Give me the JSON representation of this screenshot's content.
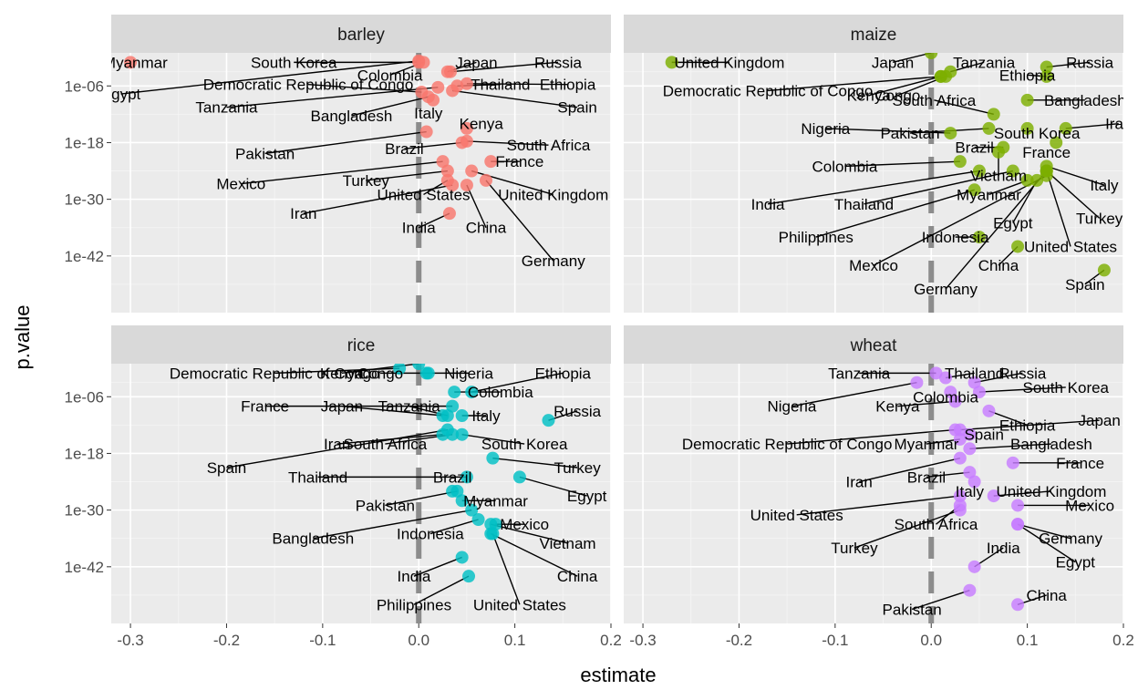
{
  "chart_data": {
    "type": "scatter",
    "xlabel": "estimate",
    "ylabel": "p.value",
    "y_scale": "log10 (reversed)",
    "xlim": [
      -0.32,
      0.2
    ],
    "x_ticks": [
      -0.3,
      -0.2,
      -0.1,
      0.0,
      0.1,
      0.2
    ],
    "x_tick_labels": [
      "-0.3",
      "-0.2",
      "-0.1",
      "0.0",
      "0.1",
      "0.2"
    ],
    "ylim": [
      10.0,
      1e-54
    ],
    "y_ticks": [
      1e-06,
      1e-18,
      1e-30,
      1e-42
    ],
    "y_tick_labels": [
      "1e-06",
      "1e-18",
      "1e-30",
      "1e-42"
    ],
    "reference_line_x": 0,
    "grid": true,
    "legend": "none",
    "colors": {
      "barley": "#F8766D",
      "maize": "#7CAE00",
      "rice": "#00BFC4",
      "wheat": "#C77CFF"
    },
    "panels": [
      {
        "crop": "barley",
        "points": [
          {
            "country": "Myanmar",
            "x": -0.3,
            "y": 0.1,
            "lx": -0.295,
            "ly": 0.1
          },
          {
            "country": "South Korea",
            "x": 0.0,
            "y": 0.1,
            "lx": -0.13,
            "ly": 0.1
          },
          {
            "country": "Egypt",
            "x": 0.0,
            "y": 0.2,
            "lx": -0.31,
            "ly": 2e-08
          },
          {
            "country": "Colombia",
            "x": 0.005,
            "y": 0.1,
            "lx": -0.03,
            "ly": 0.0002
          },
          {
            "country": "Democratic Republic of Congo",
            "x": 0.003,
            "y": 5e-08,
            "lx": -0.115,
            "ly": 2e-06
          },
          {
            "country": "Japan",
            "x": 0.03,
            "y": 0.001,
            "lx": 0.06,
            "ly": 0.1
          },
          {
            "country": "Russia",
            "x": 0.033,
            "y": 0.001,
            "lx": 0.145,
            "ly": 0.1
          },
          {
            "country": "Thailand",
            "x": 0.04,
            "y": 1e-06,
            "lx": 0.085,
            "ly": 2e-06
          },
          {
            "country": "Ethiopia",
            "x": 0.05,
            "y": 3e-06,
            "lx": 0.155,
            "ly": 2e-06
          },
          {
            "country": "Spain",
            "x": 0.035,
            "y": 1e-07,
            "lx": 0.165,
            "ly": 3e-11
          },
          {
            "country": "Tanzania",
            "x": 0.02,
            "y": 5e-07,
            "lx": -0.2,
            "ly": 3e-11
          },
          {
            "country": "Bangladesh",
            "x": 0.01,
            "y": 5e-09,
            "lx": -0.07,
            "ly": 5e-13
          },
          {
            "country": "Italy",
            "x": 0.015,
            "y": 1e-09,
            "lx": 0.01,
            "ly": 2e-12
          },
          {
            "country": "Kenya",
            "x": 0.05,
            "y": 1e-15,
            "lx": 0.065,
            "ly": 1e-14
          },
          {
            "country": "Pakistan",
            "x": 0.008,
            "y": 2e-16,
            "lx": -0.16,
            "ly": 5e-21
          },
          {
            "country": "Brazil",
            "x": 0.045,
            "y": 1e-18,
            "lx": -0.015,
            "ly": 5e-20
          },
          {
            "country": "South Africa",
            "x": 0.05,
            "y": 2e-18,
            "lx": 0.135,
            "ly": 3e-19
          },
          {
            "country": "France",
            "x": 0.075,
            "y": 1e-22,
            "lx": 0.105,
            "ly": 1e-22
          },
          {
            "country": "Mexico",
            "x": 0.025,
            "y": 1e-22,
            "lx": -0.185,
            "ly": 2e-27
          },
          {
            "country": "Turkey",
            "x": 0.03,
            "y": 1e-24,
            "lx": -0.055,
            "ly": 1e-26
          },
          {
            "country": "United States",
            "x": 0.03,
            "y": 1e-26,
            "lx": 0.005,
            "ly": 1e-29
          },
          {
            "country": "United Kingdom",
            "x": 0.055,
            "y": 1e-24,
            "lx": 0.14,
            "ly": 1e-29
          },
          {
            "country": "Iran",
            "x": 0.035,
            "y": 1e-27,
            "lx": -0.12,
            "ly": 1e-33
          },
          {
            "country": "India",
            "x": 0.032,
            "y": 1e-33,
            "lx": 0.0,
            "ly": 1e-36
          },
          {
            "country": "China",
            "x": 0.05,
            "y": 1e-27,
            "lx": 0.07,
            "ly": 1e-36
          },
          {
            "country": "Germany",
            "x": 0.07,
            "y": 1e-26,
            "lx": 0.14,
            "ly": 1e-43
          }
        ]
      },
      {
        "crop": "maize",
        "points": [
          {
            "country": "United Kingdom",
            "x": -0.27,
            "y": 0.1,
            "lx": -0.21,
            "ly": 0.1
          },
          {
            "country": "Japan",
            "x": 0.0,
            "y": 10.0,
            "lx": -0.04,
            "ly": 0.1
          },
          {
            "country": "Tanzania",
            "x": 0.02,
            "y": 0.001,
            "lx": 0.055,
            "ly": 0.1
          },
          {
            "country": "Russia",
            "x": 0.12,
            "y": 0.01,
            "lx": 0.165,
            "ly": 0.1
          },
          {
            "country": "Kenya",
            "x": 0.01,
            "y": 0.0001,
            "lx": -0.065,
            "ly": 1e-08
          },
          {
            "country": "Congo",
            "x": 0.015,
            "y": 0.0001,
            "lx": -0.035,
            "ly": 1e-08
          },
          {
            "country": "Democratic Republic of Congo",
            "x": 0.01,
            "y": 0.0001,
            "lx": -0.17,
            "ly": 1e-07
          },
          {
            "country": "Ethiopia",
            "x": 0.12,
            "y": 0.0001,
            "lx": 0.1,
            "ly": 0.0002
          },
          {
            "country": "South Africa",
            "x": 0.065,
            "y": 1e-12,
            "lx": 0.003,
            "ly": 1e-09
          },
          {
            "country": "Bangladesh",
            "x": 0.1,
            "y": 1e-09,
            "lx": 0.16,
            "ly": 1e-09
          },
          {
            "country": "Nigeria",
            "x": 0.02,
            "y": 1e-16,
            "lx": -0.11,
            "ly": 1e-15
          },
          {
            "country": "Pakistan",
            "x": 0.06,
            "y": 1e-15,
            "lx": -0.022,
            "ly": 1e-16
          },
          {
            "country": "South Korea",
            "x": 0.1,
            "y": 1e-15,
            "lx": 0.11,
            "ly": 1e-16
          },
          {
            "country": "Iran",
            "x": 0.14,
            "y": 1e-15,
            "lx": 0.195,
            "ly": 1e-14
          },
          {
            "country": "Brazil",
            "x": 0.075,
            "y": 1e-19,
            "lx": 0.045,
            "ly": 1e-19
          },
          {
            "country": "France",
            "x": 0.13,
            "y": 1e-18,
            "lx": 0.12,
            "ly": 1e-20
          },
          {
            "country": "Colombia",
            "x": 0.03,
            "y": 1e-22,
            "lx": -0.09,
            "ly": 1e-23
          },
          {
            "country": "Vietnam",
            "x": 0.07,
            "y": 1e-20,
            "lx": 0.07,
            "ly": 1e-25
          },
          {
            "country": "Italy",
            "x": 0.12,
            "y": 1e-23,
            "lx": 0.18,
            "ly": 1e-27
          },
          {
            "country": "India",
            "x": 0.05,
            "y": 1e-24,
            "lx": -0.17,
            "ly": 1e-31
          },
          {
            "country": "Thailand",
            "x": 0.085,
            "y": 1e-24,
            "lx": -0.07,
            "ly": 1e-31
          },
          {
            "country": "Myanmar",
            "x": 0.1,
            "y": 1e-26,
            "lx": 0.06,
            "ly": 1e-29
          },
          {
            "country": "Turkey",
            "x": 0.12,
            "y": 1e-24,
            "lx": 0.175,
            "ly": 1e-34
          },
          {
            "country": "Philippines",
            "x": 0.045,
            "y": 1e-28,
            "lx": -0.12,
            "ly": 1e-38
          },
          {
            "country": "Egypt",
            "x": 0.11,
            "y": 1e-26,
            "lx": 0.085,
            "ly": 1e-35
          },
          {
            "country": "Indonesia",
            "x": 0.05,
            "y": 1e-38,
            "lx": 0.025,
            "ly": 1e-38
          },
          {
            "country": "United States",
            "x": 0.12,
            "y": 1e-24,
            "lx": 0.145,
            "ly": 1e-40
          },
          {
            "country": "Mexico",
            "x": 0.12,
            "y": 1e-25,
            "lx": -0.06,
            "ly": 1e-44
          },
          {
            "country": "China",
            "x": 0.09,
            "y": 1e-40,
            "lx": 0.07,
            "ly": 1e-44
          },
          {
            "country": "Spain",
            "x": 0.18,
            "y": 1e-45,
            "lx": 0.16,
            "ly": 1e-48
          },
          {
            "country": "Germany",
            "x": 0.12,
            "y": 1e-24,
            "lx": 0.015,
            "ly": 1e-49
          }
        ]
      },
      {
        "crop": "rice",
        "points": [
          {
            "country": "Democratic Republic of Congo",
            "x": -0.02,
            "y": 1.0,
            "lx": -0.15,
            "ly": 0.1
          },
          {
            "country": "Kenya",
            "x": 0.0,
            "y": 10.0,
            "lx": -0.08,
            "ly": 0.1
          },
          {
            "country": "Congo",
            "x": 0.01,
            "y": 0.1,
            "lx": -0.04,
            "ly": 0.1
          },
          {
            "country": "Nigeria",
            "x": 0.008,
            "y": 0.1,
            "lx": 0.052,
            "ly": 0.1
          },
          {
            "country": "Ethiopia",
            "x": 0.055,
            "y": 1e-05,
            "lx": 0.15,
            "ly": 0.1
          },
          {
            "country": "Colombia",
            "x": 0.037,
            "y": 1e-05,
            "lx": 0.085,
            "ly": 1e-05
          },
          {
            "country": "France",
            "x": 0.035,
            "y": 1e-08,
            "lx": -0.16,
            "ly": 1e-08
          },
          {
            "country": "Japan",
            "x": 0.025,
            "y": 1e-10,
            "lx": -0.08,
            "ly": 1e-08
          },
          {
            "country": "Tanzania",
            "x": 0.03,
            "y": 1e-10,
            "lx": -0.01,
            "ly": 1e-08
          },
          {
            "country": "Italy",
            "x": 0.045,
            "y": 1e-10,
            "lx": 0.07,
            "ly": 1e-10
          },
          {
            "country": "Russia",
            "x": 0.135,
            "y": 1e-11,
            "lx": 0.165,
            "ly": 1e-09
          },
          {
            "country": "Iran",
            "x": 0.025,
            "y": 1e-14,
            "lx": -0.085,
            "ly": 1e-16
          },
          {
            "country": "South Africa",
            "x": 0.035,
            "y": 1e-14,
            "lx": -0.035,
            "ly": 1e-16
          },
          {
            "country": "South Korea",
            "x": 0.045,
            "y": 1e-14,
            "lx": 0.11,
            "ly": 1e-16
          },
          {
            "country": "Spain",
            "x": 0.03,
            "y": 1e-13,
            "lx": -0.2,
            "ly": 1e-21
          },
          {
            "country": "Turkey",
            "x": 0.077,
            "y": 1e-19,
            "lx": 0.165,
            "ly": 1e-21
          },
          {
            "country": "Thailand",
            "x": 0.05,
            "y": 1e-23,
            "lx": -0.105,
            "ly": 1e-23
          },
          {
            "country": "Brazil",
            "x": 0.035,
            "y": 1e-26,
            "lx": 0.035,
            "ly": 1e-23
          },
          {
            "country": "Egypt",
            "x": 0.105,
            "y": 1e-23,
            "lx": 0.175,
            "ly": 1e-27
          },
          {
            "country": "Pakistan",
            "x": 0.04,
            "y": 1e-26,
            "lx": -0.035,
            "ly": 1e-29
          },
          {
            "country": "Myanmar",
            "x": 0.045,
            "y": 1e-28,
            "lx": 0.08,
            "ly": 1e-28
          },
          {
            "country": "Mexico",
            "x": 0.08,
            "y": 1e-33,
            "lx": 0.11,
            "ly": 1e-33
          },
          {
            "country": "Bangladesh",
            "x": 0.055,
            "y": 1e-30,
            "lx": -0.11,
            "ly": 1e-36
          },
          {
            "country": "Indonesia",
            "x": 0.062,
            "y": 1e-32,
            "lx": 0.012,
            "ly": 1e-35
          },
          {
            "country": "Vietnam",
            "x": 0.075,
            "y": 1e-33,
            "lx": 0.155,
            "ly": 1e-37
          },
          {
            "country": "India",
            "x": 0.045,
            "y": 1e-40,
            "lx": -0.005,
            "ly": 1e-44
          },
          {
            "country": "China",
            "x": 0.075,
            "y": 1e-35,
            "lx": 0.165,
            "ly": 1e-44
          },
          {
            "country": "Philippines",
            "x": 0.052,
            "y": 1e-44,
            "lx": -0.005,
            "ly": 1e-50
          },
          {
            "country": "United States",
            "x": 0.077,
            "y": 1e-35,
            "lx": 0.105,
            "ly": 1e-50
          }
        ]
      },
      {
        "crop": "wheat",
        "points": [
          {
            "country": "Tanzania",
            "x": 0.005,
            "y": 0.1,
            "lx": -0.075,
            "ly": 0.1
          },
          {
            "country": "Thailand",
            "x": 0.015,
            "y": 0.01,
            "lx": 0.045,
            "ly": 0.1
          },
          {
            "country": "Russia",
            "x": 0.045,
            "y": 0.001,
            "lx": 0.095,
            "ly": 0.1
          },
          {
            "country": "Nigeria",
            "x": -0.015,
            "y": 0.001,
            "lx": -0.145,
            "ly": 1e-08
          },
          {
            "country": "South Korea",
            "x": 0.05,
            "y": 1e-05,
            "lx": 0.14,
            "ly": 0.0001
          },
          {
            "country": "Colombia",
            "x": 0.02,
            "y": 1e-05,
            "lx": 0.015,
            "ly": 1e-06
          },
          {
            "country": "Kenya",
            "x": 0.025,
            "y": 1e-07,
            "lx": -0.035,
            "ly": 1e-08
          },
          {
            "country": "Ethiopia",
            "x": 0.06,
            "y": 1e-09,
            "lx": 0.1,
            "ly": 1e-12
          },
          {
            "country": "Japan",
            "x": 0.03,
            "y": 1e-13,
            "lx": 0.175,
            "ly": 1e-11
          },
          {
            "country": "Democratic Republic of Congo",
            "x": 0.025,
            "y": 1e-13,
            "lx": -0.15,
            "ly": 1e-16
          },
          {
            "country": "Myanmar",
            "x": 0.03,
            "y": 1e-15,
            "lx": -0.005,
            "ly": 1e-16
          },
          {
            "country": "Spain",
            "x": 0.04,
            "y": 1e-14,
            "lx": 0.055,
            "ly": 1e-14
          },
          {
            "country": "Bangladesh",
            "x": 0.04,
            "y": 1e-17,
            "lx": 0.125,
            "ly": 1e-16
          },
          {
            "country": "France",
            "x": 0.085,
            "y": 1e-20,
            "lx": 0.155,
            "ly": 1e-20
          },
          {
            "country": "Iran",
            "x": 0.03,
            "y": 1e-19,
            "lx": -0.075,
            "ly": 1e-24
          },
          {
            "country": "Brazil",
            "x": 0.04,
            "y": 1e-22,
            "lx": -0.005,
            "ly": 1e-23
          },
          {
            "country": "Italy",
            "x": 0.045,
            "y": 1e-24,
            "lx": 0.04,
            "ly": 1e-26
          },
          {
            "country": "United Kingdom",
            "x": 0.065,
            "y": 1e-27,
            "lx": 0.125,
            "ly": 1e-26
          },
          {
            "country": "United States",
            "x": 0.03,
            "y": 1e-27,
            "lx": -0.14,
            "ly": 1e-31
          },
          {
            "country": "Mexico",
            "x": 0.09,
            "y": 1e-29,
            "lx": 0.165,
            "ly": 1e-29
          },
          {
            "country": "South Africa",
            "x": 0.03,
            "y": 1e-29,
            "lx": 0.005,
            "ly": 1e-33
          },
          {
            "country": "Germany",
            "x": 0.09,
            "y": 1e-33,
            "lx": 0.145,
            "ly": 1e-36
          },
          {
            "country": "Turkey",
            "x": 0.03,
            "y": 1e-30,
            "lx": -0.08,
            "ly": 1e-38
          },
          {
            "country": "India",
            "x": 0.045,
            "y": 1e-42,
            "lx": 0.075,
            "ly": 1e-38
          },
          {
            "country": "Egypt",
            "x": 0.09,
            "y": 1e-33,
            "lx": 0.15,
            "ly": 1e-41
          },
          {
            "country": "Pakistan",
            "x": 0.04,
            "y": 1e-47,
            "lx": -0.02,
            "ly": 1e-51
          },
          {
            "country": "China",
            "x": 0.09,
            "y": 1e-50,
            "lx": 0.12,
            "ly": 1e-48
          }
        ]
      }
    ]
  }
}
